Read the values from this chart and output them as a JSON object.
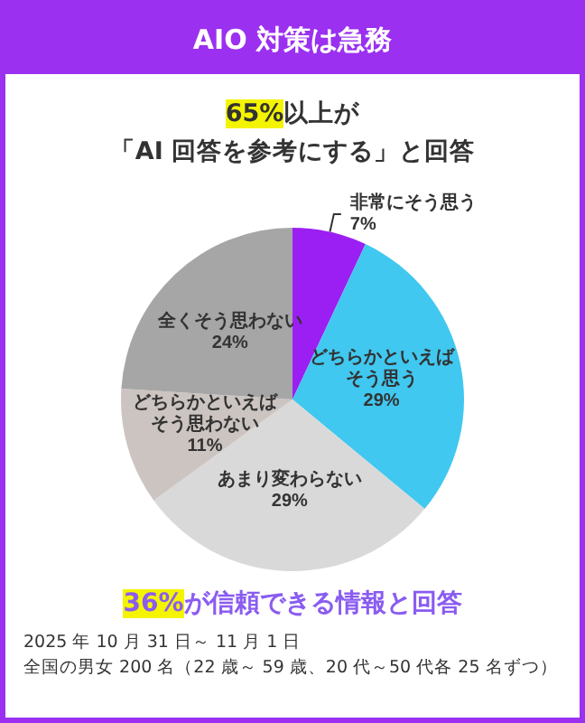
{
  "chart_data": {
    "type": "pie",
    "title": "AIO 対策は急務",
    "subtitle": "65%以上が「AI 回答を参考にする」と回答",
    "categories": [
      "非常にそう思う",
      "どちらかといえばそう思う",
      "あまり変わらない",
      "どちらかといえばそう思わない",
      "全くそう思わない"
    ],
    "values": [
      7,
      29,
      29,
      11,
      24
    ],
    "value_labels": [
      "7%",
      "29%",
      "29%",
      "11%",
      "24%"
    ],
    "colors": [
      "#9b1ff2",
      "#40c8f0",
      "#d9d9d9",
      "#cbc4c1",
      "#a6a6a6"
    ],
    "annotations": [
      "36%が信頼できる情報と回答",
      "2025 年 10 月 31 日～ 11 月 1 日",
      "全国の男女 200 名（22 歳～ 59 歳、20 代～50 代各 25 名ずつ）"
    ]
  }
}
